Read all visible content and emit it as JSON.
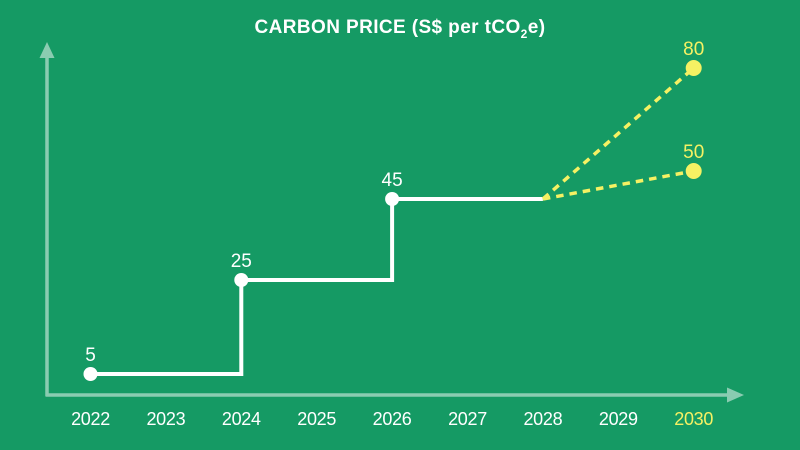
{
  "colors": {
    "background": "#159a64",
    "line_white": "#ffffff",
    "accent_yellow": "#f5f163",
    "axis_arrow": "#8accb1"
  },
  "title": {
    "prefix": "CARBON PRICE (S$ per tCO",
    "sub": "2",
    "suffix": "e)"
  },
  "chart_data": {
    "type": "line",
    "title": "CARBON PRICE (S$ per tCO2e)",
    "x_ticks": [
      "2022",
      "2023",
      "2024",
      "2025",
      "2026",
      "2027",
      "2028",
      "2029",
      "2030"
    ],
    "highlighted_x_tick": "2030",
    "grid": false,
    "legend": false,
    "y_axis_labeled": false,
    "series": [
      {
        "name": "carbon-tax-actual",
        "style": "solid-step",
        "color": "#ffffff",
        "points": [
          {
            "x": 2022,
            "y": 5,
            "label": "5"
          },
          {
            "x": 2024,
            "y": 25,
            "label": "25"
          },
          {
            "x": 2026,
            "y": 45,
            "label": "45"
          }
        ],
        "extend_to_x": 2028
      },
      {
        "name": "projection-high",
        "style": "dashed",
        "color": "#f5f163",
        "points": [
          {
            "x": 2028,
            "y": 45
          },
          {
            "x": 2030,
            "y": 80,
            "label": "80"
          }
        ]
      },
      {
        "name": "projection-low",
        "style": "dashed",
        "color": "#f5f163",
        "points": [
          {
            "x": 2028,
            "y": 45
          },
          {
            "x": 2030,
            "y": 50,
            "label": "50"
          }
        ]
      }
    ]
  }
}
